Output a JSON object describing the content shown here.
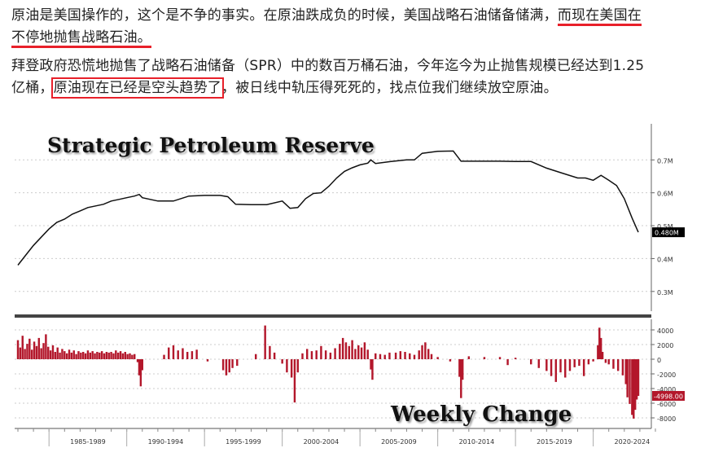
{
  "article": {
    "p1_a": "原油是美国操作的，这个是不争的事实。在原油跌成负的时候，美国战略石油储备储满，",
    "p1_b": "而现在美国在",
    "p1_c": "不停地抛售战略石油。",
    "p2_a": "拜登政府恐慌地抛售了战略石油储备（SPR）中的数百万桶石油，今年迄今为止抛售规模已经达到1.25",
    "p2_b": "亿桶，",
    "p2_c": "原油现在已经是空头趋势了",
    "p2_d": "，被日线中轨压得死死的，找点位我们继续放空原油。"
  },
  "colors": {
    "highlight": "#e8202a",
    "line": "#111111",
    "bars": "#b3172b"
  },
  "chart_data": [
    {
      "type": "line",
      "title": "Strategic Petroleum Reserve",
      "x": [
        1983.0,
        1983.5,
        1984.0,
        1984.5,
        1985.0,
        1985.5,
        1986.0,
        1986.5,
        1987.0,
        1987.5,
        1988.0,
        1988.5,
        1989.0,
        1989.5,
        1990.0,
        1990.5,
        1990.8,
        1991.0,
        1992.0,
        1993.0,
        1994.0,
        1995.0,
        1996.0,
        1996.5,
        1997.0,
        1998.0,
        1999.0,
        2000.0,
        2000.5,
        2001.0,
        2001.5,
        2002.0,
        2002.5,
        2003.0,
        2003.5,
        2004.0,
        2004.5,
        2005.0,
        2005.5,
        2005.7,
        2006.0,
        2007.0,
        2008.0,
        2008.5,
        2009.0,
        2010.0,
        2011.0,
        2011.5,
        2012.0,
        2013.0,
        2014.0,
        2015.0,
        2016.0,
        2017.0,
        2018.0,
        2019.0,
        2019.5,
        2020.0,
        2020.5,
        2021.0,
        2021.5,
        2022.0,
        2022.5,
        2022.9
      ],
      "y": [
        0.38,
        0.41,
        0.44,
        0.465,
        0.49,
        0.51,
        0.52,
        0.535,
        0.545,
        0.555,
        0.56,
        0.565,
        0.575,
        0.58,
        0.585,
        0.59,
        0.595,
        0.585,
        0.575,
        0.575,
        0.59,
        0.592,
        0.592,
        0.588,
        0.565,
        0.564,
        0.564,
        0.575,
        0.553,
        0.555,
        0.582,
        0.598,
        0.6,
        0.62,
        0.645,
        0.665,
        0.676,
        0.685,
        0.69,
        0.7,
        0.689,
        0.695,
        0.7,
        0.7,
        0.72,
        0.726,
        0.727,
        0.696,
        0.696,
        0.696,
        0.696,
        0.695,
        0.695,
        0.675,
        0.66,
        0.645,
        0.645,
        0.638,
        0.653,
        0.638,
        0.622,
        0.582,
        0.523,
        0.48
      ],
      "ylim": [
        0.25,
        0.78
      ],
      "yticks": [
        0.3,
        0.4,
        0.5,
        0.6,
        0.7
      ],
      "ytick_labels": [
        "0.3M",
        "0.4M",
        "0.5M",
        "0.6M",
        "0.7M"
      ],
      "last_value_label": "0.480M"
    },
    {
      "type": "bar",
      "title": "Weekly Change",
      "x_range": [
        1983.0,
        2022.9
      ],
      "ylim": [
        -9000,
        5000
      ],
      "yticks": [
        4000,
        2000,
        0,
        -2000,
        -4000,
        -6000,
        -8000
      ],
      "ytick_labels": [
        "4000",
        "2000",
        "0",
        "-2000",
        "-4000",
        "-6000",
        "-8000"
      ],
      "last_value_label": "-4998.00",
      "xtick_labels": [
        "1985-1989",
        "1990-1994",
        "1995-1999",
        "2000-2004",
        "2005-2009",
        "2010-2014",
        "2015-2019",
        "2020-2024"
      ],
      "xtick_years": [
        1985,
        1990,
        1995,
        2000,
        2005,
        2010,
        2015,
        2020
      ],
      "weekly_change": [
        [
          1983.0,
          2600
        ],
        [
          1983.15,
          1600
        ],
        [
          1983.3,
          3200
        ],
        [
          1983.45,
          1400
        ],
        [
          1983.6,
          2100
        ],
        [
          1983.75,
          2800
        ],
        [
          1983.9,
          1300
        ],
        [
          1984.05,
          2400
        ],
        [
          1984.2,
          1800
        ],
        [
          1984.35,
          2900
        ],
        [
          1984.5,
          1500
        ],
        [
          1984.65,
          2200
        ],
        [
          1984.8,
          3400
        ],
        [
          1984.95,
          1700
        ],
        [
          1985.1,
          1200
        ],
        [
          1985.25,
          1900
        ],
        [
          1985.4,
          1000
        ],
        [
          1985.55,
          1600
        ],
        [
          1985.7,
          900
        ],
        [
          1985.85,
          1400
        ],
        [
          1986.0,
          1100
        ],
        [
          1986.15,
          800
        ],
        [
          1986.3,
          1300
        ],
        [
          1986.45,
          900
        ],
        [
          1986.6,
          1200
        ],
        [
          1986.75,
          700
        ],
        [
          1986.9,
          1100
        ],
        [
          1987.05,
          900
        ],
        [
          1987.2,
          1000
        ],
        [
          1987.35,
          800
        ],
        [
          1987.5,
          1200
        ],
        [
          1987.65,
          900
        ],
        [
          1987.8,
          1100
        ],
        [
          1987.95,
          800
        ],
        [
          1988.1,
          1000
        ],
        [
          1988.25,
          900
        ],
        [
          1988.4,
          1100
        ],
        [
          1988.55,
          800
        ],
        [
          1988.7,
          1000
        ],
        [
          1988.85,
          900
        ],
        [
          1989.0,
          1000
        ],
        [
          1989.15,
          800
        ],
        [
          1989.3,
          1200
        ],
        [
          1989.45,
          900
        ],
        [
          1989.6,
          1100
        ],
        [
          1989.75,
          800
        ],
        [
          1989.9,
          1000
        ],
        [
          1990.05,
          700
        ],
        [
          1990.2,
          800
        ],
        [
          1990.35,
          600
        ],
        [
          1990.5,
          700
        ],
        [
          1990.7,
          -400
        ],
        [
          1990.8,
          -2200
        ],
        [
          1990.9,
          -3700
        ],
        [
          1991.0,
          -1500
        ],
        [
          1992.4,
          600
        ],
        [
          1992.7,
          1600
        ],
        [
          1993.0,
          1900
        ],
        [
          1993.3,
          1200
        ],
        [
          1993.6,
          1500
        ],
        [
          1993.9,
          1000
        ],
        [
          1994.2,
          1100
        ],
        [
          1994.5,
          1300
        ],
        [
          1995.2,
          -300
        ],
        [
          1996.2,
          -1500
        ],
        [
          1996.4,
          -2200
        ],
        [
          1996.6,
          -1800
        ],
        [
          1996.8,
          -1200
        ],
        [
          1997.1,
          -900
        ],
        [
          1998.3,
          700
        ],
        [
          1998.9,
          4600
        ],
        [
          1999.2,
          1800
        ],
        [
          1999.5,
          900
        ],
        [
          2000.0,
          -600
        ],
        [
          2000.3,
          -1800
        ],
        [
          2000.6,
          -2500
        ],
        [
          2000.8,
          -5900
        ],
        [
          2001.0,
          -1800
        ],
        [
          2001.3,
          800
        ],
        [
          2001.6,
          1400
        ],
        [
          2001.9,
          1100
        ],
        [
          2002.2,
          1200
        ],
        [
          2002.5,
          1800
        ],
        [
          2002.8,
          1200
        ],
        [
          2003.1,
          900
        ],
        [
          2003.4,
          1500
        ],
        [
          2003.7,
          2100
        ],
        [
          2003.9,
          2900
        ],
        [
          2004.1,
          2300
        ],
        [
          2004.3,
          1800
        ],
        [
          2004.5,
          2600
        ],
        [
          2004.7,
          1400
        ],
        [
          2004.9,
          1900
        ],
        [
          2005.1,
          1600
        ],
        [
          2005.3,
          2300
        ],
        [
          2005.5,
          1300
        ],
        [
          2005.7,
          -1400
        ],
        [
          2005.8,
          -2800
        ],
        [
          2006.0,
          800
        ],
        [
          2006.3,
          700
        ],
        [
          2006.6,
          600
        ],
        [
          2006.9,
          900
        ],
        [
          2007.3,
          900
        ],
        [
          2007.6,
          1100
        ],
        [
          2007.9,
          1000
        ],
        [
          2008.2,
          800
        ],
        [
          2008.5,
          600
        ],
        [
          2008.8,
          1200
        ],
        [
          2009.0,
          1900
        ],
        [
          2009.2,
          2300
        ],
        [
          2009.4,
          1400
        ],
        [
          2009.6,
          700
        ],
        [
          2010.0,
          300
        ],
        [
          2010.8,
          -300
        ],
        [
          2011.4,
          -2400
        ],
        [
          2011.5,
          -5300
        ],
        [
          2011.6,
          -2800
        ],
        [
          2012.0,
          400
        ],
        [
          2013.0,
          300
        ],
        [
          2014.0,
          300
        ],
        [
          2014.5,
          -800
        ],
        [
          2015.0,
          200
        ],
        [
          2016.0,
          -700
        ],
        [
          2016.5,
          -1200
        ],
        [
          2017.0,
          -1600
        ],
        [
          2017.3,
          -2300
        ],
        [
          2017.6,
          -3100
        ],
        [
          2017.9,
          -1800
        ],
        [
          2018.2,
          -2500
        ],
        [
          2018.5,
          -1600
        ],
        [
          2018.8,
          -1100
        ],
        [
          2019.1,
          -900
        ],
        [
          2019.4,
          -2300
        ],
        [
          2019.7,
          -700
        ],
        [
          2020.0,
          -300
        ],
        [
          2020.3,
          1900
        ],
        [
          2020.4,
          4300
        ],
        [
          2020.5,
          2900
        ],
        [
          2020.6,
          1000
        ],
        [
          2020.8,
          -500
        ],
        [
          2021.0,
          -700
        ],
        [
          2021.3,
          -1300
        ],
        [
          2021.6,
          -1600
        ],
        [
          2021.9,
          -2200
        ],
        [
          2022.1,
          -3400
        ],
        [
          2022.2,
          -5200
        ],
        [
          2022.35,
          -6100
        ],
        [
          2022.5,
          -7600
        ],
        [
          2022.6,
          -8100
        ],
        [
          2022.7,
          -6900
        ],
        [
          2022.8,
          -5500
        ],
        [
          2022.9,
          -5000
        ]
      ]
    }
  ]
}
